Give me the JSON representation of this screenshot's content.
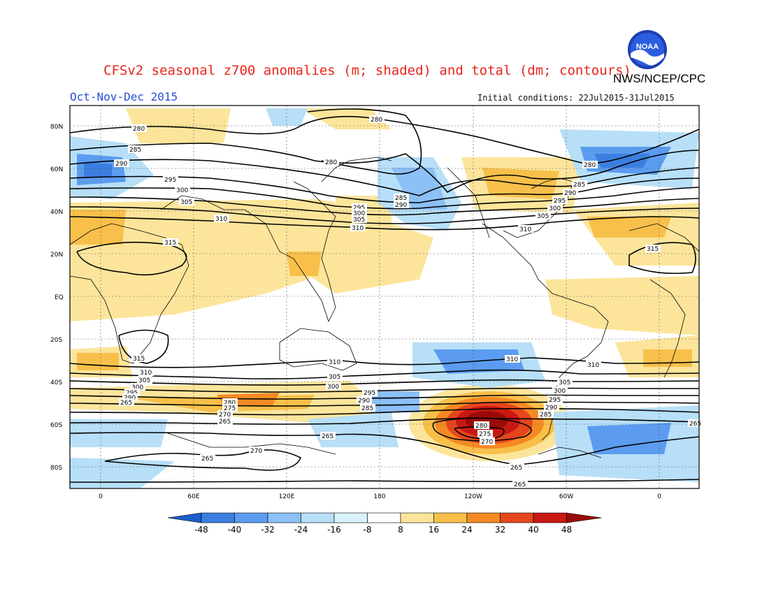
{
  "header": {
    "title": "CFSv2 seasonal z700 anomalies (m; shaded) and total (dm; contours)",
    "organization": "NWS/NCEP/CPC",
    "period": "Oct-Nov-Dec 2015",
    "initial_conditions": "Initial conditions: 22Jul2015-31Jul2015",
    "logo_text": "NOAA"
  },
  "map": {
    "lat_ticks": [
      "80N",
      "60N",
      "40N",
      "20N",
      "EQ",
      "20S",
      "40S",
      "60S",
      "80S"
    ],
    "lon_ticks": [
      "0",
      "60E",
      "120E",
      "180",
      "120W",
      "60W",
      "0"
    ],
    "contour_labels": [
      "280",
      "285",
      "290",
      "295",
      "300",
      "305",
      "310",
      "315",
      "275",
      "270",
      "265"
    ]
  },
  "colorbar": {
    "labels": [
      "-48",
      "-40",
      "-32",
      "-24",
      "-16",
      "-8",
      "8",
      "16",
      "24",
      "32",
      "40",
      "48"
    ],
    "colors": [
      "#1a5fcf",
      "#3a7fe0",
      "#5b9cf0",
      "#8cc0f6",
      "#b7dff8",
      "#d8f1fb",
      "#ffffff",
      "#fce59b",
      "#f8c04a",
      "#f58a24",
      "#e6461c",
      "#c81812",
      "#9a0a08"
    ]
  }
}
